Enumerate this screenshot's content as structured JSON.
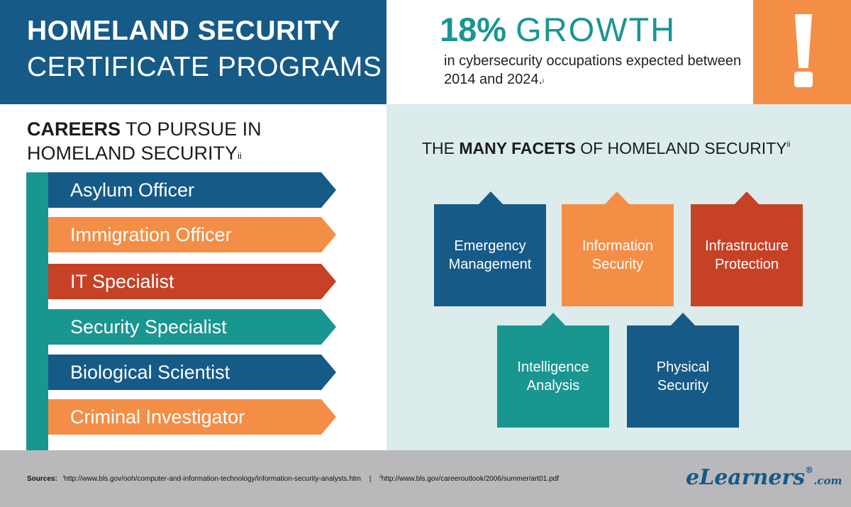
{
  "header": {
    "title_line1": "HOMELAND SECURITY",
    "title_line2": "CERTIFICATE PROGRAMS",
    "growth_percent": "18%",
    "growth_word": "GROWTH",
    "growth_description": "in cybersecurity occupations expected between 2014 and 2024.",
    "growth_footnote": "i",
    "alert_icon": "exclamation-icon"
  },
  "careers": {
    "heading_bold": "CAREERS",
    "heading_rest_line1": " TO PURSUE IN",
    "heading_line2": "HOMELAND SECURITY",
    "heading_footnote": "ii",
    "items": [
      {
        "label": "Asylum Officer",
        "color": "#165a87"
      },
      {
        "label": "Immigration Officer",
        "color": "#f48e47"
      },
      {
        "label": "IT Specialist",
        "color": "#c74126"
      },
      {
        "label": "Security Specialist",
        "color": "#1a9690"
      },
      {
        "label": "Biological Scientist",
        "color": "#165a87"
      },
      {
        "label": "Criminal Investigator",
        "color": "#f48e47"
      }
    ]
  },
  "facets": {
    "heading_prefix": "THE ",
    "heading_bold": "MANY FACETS",
    "heading_suffix": " OF HOMELAND SECURITY",
    "heading_footnote": "ii",
    "items": [
      {
        "label": "Emergency Management",
        "color": "#165a87"
      },
      {
        "label": "Information Security",
        "color": "#f48e47"
      },
      {
        "label": "Infrastructure Protection",
        "color": "#c74126"
      },
      {
        "label": "Intelligence Analysis",
        "color": "#1a9690"
      },
      {
        "label": "Physical Security",
        "color": "#165a87"
      }
    ]
  },
  "footer": {
    "sources_label": "Sources:",
    "source1_marker": "i",
    "source1_url": "http://www.bls.gov/ooh/computer-and-information-technology/information-security-analysts.htm",
    "separator": "|",
    "source2_marker": "ii",
    "source2_url": "http://www.bls.gov/careeroutlook/2006/summer/art01.pdf",
    "brand_e": "e",
    "brand_name": "Learners",
    "brand_reg": "®",
    "brand_tld": ".com"
  }
}
